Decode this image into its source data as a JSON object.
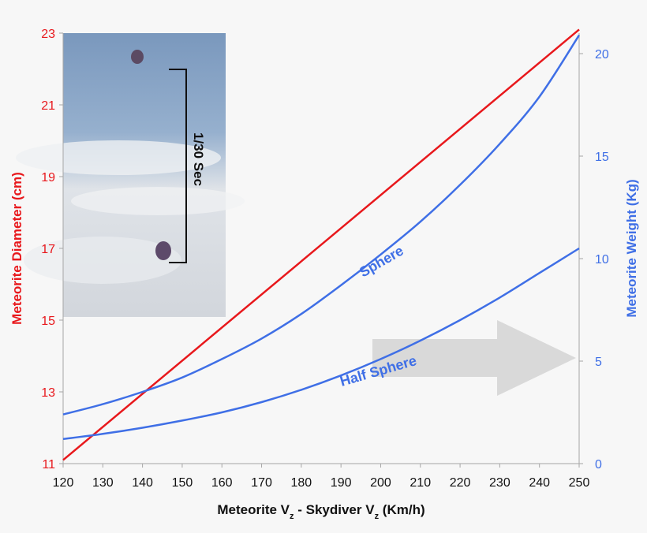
{
  "chart_data": {
    "type": "line",
    "xlabel": {
      "prefix": "Meteorite V",
      "sub1": "z",
      "mid": " - Skydiver V",
      "sub2": "z",
      "suffix": " (Km/h)"
    },
    "ylabel_left": "Meteorite Diameter (cm)",
    "ylabel_right": "Meteorite Weight (Kg)",
    "xlim": [
      120,
      250
    ],
    "ylim_left": [
      11,
      23
    ],
    "ylim_right": [
      0,
      21
    ],
    "x_ticks": [
      120,
      130,
      140,
      150,
      160,
      170,
      180,
      190,
      200,
      210,
      220,
      230,
      240,
      250
    ],
    "y_left_ticks": [
      11,
      13,
      15,
      17,
      19,
      21,
      23
    ],
    "y_right_ticks": [
      0,
      5,
      10,
      15,
      20
    ],
    "grid": false,
    "colors": {
      "diameter": "#e8181c",
      "weight": "#3f6fe6",
      "arrow": "#d9d9d9"
    },
    "series": [
      {
        "name": "",
        "axis": "left",
        "color": "#e8181c",
        "x": [
          120,
          250
        ],
        "y": [
          11.1,
          23.1
        ]
      },
      {
        "name": "Sphere",
        "axis": "right",
        "color": "#3f6fe6",
        "x": [
          120,
          130,
          140,
          150,
          160,
          170,
          180,
          190,
          200,
          210,
          220,
          230,
          240,
          250
        ],
        "y": [
          2.4,
          2.9,
          3.5,
          4.2,
          5.1,
          6.1,
          7.3,
          8.7,
          10.2,
          11.8,
          13.6,
          15.6,
          17.9,
          20.9
        ]
      },
      {
        "name": "Half Sphere",
        "axis": "right",
        "color": "#3f6fe6",
        "x": [
          120,
          130,
          140,
          150,
          160,
          170,
          180,
          190,
          200,
          210,
          220,
          230,
          240,
          250
        ],
        "y": [
          1.2,
          1.45,
          1.75,
          2.1,
          2.5,
          3.0,
          3.6,
          4.3,
          5.1,
          6.0,
          7.0,
          8.1,
          9.3,
          10.5
        ]
      }
    ],
    "annotations": {
      "sphere_label": "Sphere",
      "half_sphere_label": "Half Sphere",
      "inset_label": "1/30 Sec"
    }
  }
}
